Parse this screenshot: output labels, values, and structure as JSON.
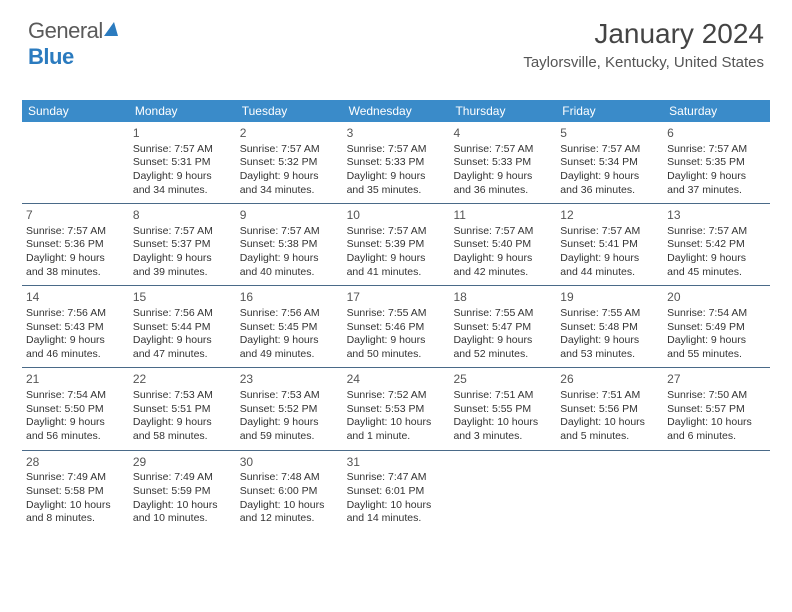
{
  "brand": {
    "part1": "General",
    "part2": "Blue"
  },
  "title": {
    "month": "January 2024",
    "location": "Taylorsville, Kentucky, United States"
  },
  "colors": {
    "header_bg": "#3a8bc9",
    "header_fg": "#ffffff",
    "divider": "#4a6a88",
    "text": "#333333"
  },
  "day_headers": [
    "Sunday",
    "Monday",
    "Tuesday",
    "Wednesday",
    "Thursday",
    "Friday",
    "Saturday"
  ],
  "weeks": [
    [
      {
        "num": "",
        "sunrise": "",
        "sunset": "",
        "daylight": ""
      },
      {
        "num": "1",
        "sunrise": "Sunrise: 7:57 AM",
        "sunset": "Sunset: 5:31 PM",
        "daylight": "Daylight: 9 hours and 34 minutes."
      },
      {
        "num": "2",
        "sunrise": "Sunrise: 7:57 AM",
        "sunset": "Sunset: 5:32 PM",
        "daylight": "Daylight: 9 hours and 34 minutes."
      },
      {
        "num": "3",
        "sunrise": "Sunrise: 7:57 AM",
        "sunset": "Sunset: 5:33 PM",
        "daylight": "Daylight: 9 hours and 35 minutes."
      },
      {
        "num": "4",
        "sunrise": "Sunrise: 7:57 AM",
        "sunset": "Sunset: 5:33 PM",
        "daylight": "Daylight: 9 hours and 36 minutes."
      },
      {
        "num": "5",
        "sunrise": "Sunrise: 7:57 AM",
        "sunset": "Sunset: 5:34 PM",
        "daylight": "Daylight: 9 hours and 36 minutes."
      },
      {
        "num": "6",
        "sunrise": "Sunrise: 7:57 AM",
        "sunset": "Sunset: 5:35 PM",
        "daylight": "Daylight: 9 hours and 37 minutes."
      }
    ],
    [
      {
        "num": "7",
        "sunrise": "Sunrise: 7:57 AM",
        "sunset": "Sunset: 5:36 PM",
        "daylight": "Daylight: 9 hours and 38 minutes."
      },
      {
        "num": "8",
        "sunrise": "Sunrise: 7:57 AM",
        "sunset": "Sunset: 5:37 PM",
        "daylight": "Daylight: 9 hours and 39 minutes."
      },
      {
        "num": "9",
        "sunrise": "Sunrise: 7:57 AM",
        "sunset": "Sunset: 5:38 PM",
        "daylight": "Daylight: 9 hours and 40 minutes."
      },
      {
        "num": "10",
        "sunrise": "Sunrise: 7:57 AM",
        "sunset": "Sunset: 5:39 PM",
        "daylight": "Daylight: 9 hours and 41 minutes."
      },
      {
        "num": "11",
        "sunrise": "Sunrise: 7:57 AM",
        "sunset": "Sunset: 5:40 PM",
        "daylight": "Daylight: 9 hours and 42 minutes."
      },
      {
        "num": "12",
        "sunrise": "Sunrise: 7:57 AM",
        "sunset": "Sunset: 5:41 PM",
        "daylight": "Daylight: 9 hours and 44 minutes."
      },
      {
        "num": "13",
        "sunrise": "Sunrise: 7:57 AM",
        "sunset": "Sunset: 5:42 PM",
        "daylight": "Daylight: 9 hours and 45 minutes."
      }
    ],
    [
      {
        "num": "14",
        "sunrise": "Sunrise: 7:56 AM",
        "sunset": "Sunset: 5:43 PM",
        "daylight": "Daylight: 9 hours and 46 minutes."
      },
      {
        "num": "15",
        "sunrise": "Sunrise: 7:56 AM",
        "sunset": "Sunset: 5:44 PM",
        "daylight": "Daylight: 9 hours and 47 minutes."
      },
      {
        "num": "16",
        "sunrise": "Sunrise: 7:56 AM",
        "sunset": "Sunset: 5:45 PM",
        "daylight": "Daylight: 9 hours and 49 minutes."
      },
      {
        "num": "17",
        "sunrise": "Sunrise: 7:55 AM",
        "sunset": "Sunset: 5:46 PM",
        "daylight": "Daylight: 9 hours and 50 minutes."
      },
      {
        "num": "18",
        "sunrise": "Sunrise: 7:55 AM",
        "sunset": "Sunset: 5:47 PM",
        "daylight": "Daylight: 9 hours and 52 minutes."
      },
      {
        "num": "19",
        "sunrise": "Sunrise: 7:55 AM",
        "sunset": "Sunset: 5:48 PM",
        "daylight": "Daylight: 9 hours and 53 minutes."
      },
      {
        "num": "20",
        "sunrise": "Sunrise: 7:54 AM",
        "sunset": "Sunset: 5:49 PM",
        "daylight": "Daylight: 9 hours and 55 minutes."
      }
    ],
    [
      {
        "num": "21",
        "sunrise": "Sunrise: 7:54 AM",
        "sunset": "Sunset: 5:50 PM",
        "daylight": "Daylight: 9 hours and 56 minutes."
      },
      {
        "num": "22",
        "sunrise": "Sunrise: 7:53 AM",
        "sunset": "Sunset: 5:51 PM",
        "daylight": "Daylight: 9 hours and 58 minutes."
      },
      {
        "num": "23",
        "sunrise": "Sunrise: 7:53 AM",
        "sunset": "Sunset: 5:52 PM",
        "daylight": "Daylight: 9 hours and 59 minutes."
      },
      {
        "num": "24",
        "sunrise": "Sunrise: 7:52 AM",
        "sunset": "Sunset: 5:53 PM",
        "daylight": "Daylight: 10 hours and 1 minute."
      },
      {
        "num": "25",
        "sunrise": "Sunrise: 7:51 AM",
        "sunset": "Sunset: 5:55 PM",
        "daylight": "Daylight: 10 hours and 3 minutes."
      },
      {
        "num": "26",
        "sunrise": "Sunrise: 7:51 AM",
        "sunset": "Sunset: 5:56 PM",
        "daylight": "Daylight: 10 hours and 5 minutes."
      },
      {
        "num": "27",
        "sunrise": "Sunrise: 7:50 AM",
        "sunset": "Sunset: 5:57 PM",
        "daylight": "Daylight: 10 hours and 6 minutes."
      }
    ],
    [
      {
        "num": "28",
        "sunrise": "Sunrise: 7:49 AM",
        "sunset": "Sunset: 5:58 PM",
        "daylight": "Daylight: 10 hours and 8 minutes."
      },
      {
        "num": "29",
        "sunrise": "Sunrise: 7:49 AM",
        "sunset": "Sunset: 5:59 PM",
        "daylight": "Daylight: 10 hours and 10 minutes."
      },
      {
        "num": "30",
        "sunrise": "Sunrise: 7:48 AM",
        "sunset": "Sunset: 6:00 PM",
        "daylight": "Daylight: 10 hours and 12 minutes."
      },
      {
        "num": "31",
        "sunrise": "Sunrise: 7:47 AM",
        "sunset": "Sunset: 6:01 PM",
        "daylight": "Daylight: 10 hours and 14 minutes."
      },
      {
        "num": "",
        "sunrise": "",
        "sunset": "",
        "daylight": ""
      },
      {
        "num": "",
        "sunrise": "",
        "sunset": "",
        "daylight": ""
      },
      {
        "num": "",
        "sunrise": "",
        "sunset": "",
        "daylight": ""
      }
    ]
  ]
}
